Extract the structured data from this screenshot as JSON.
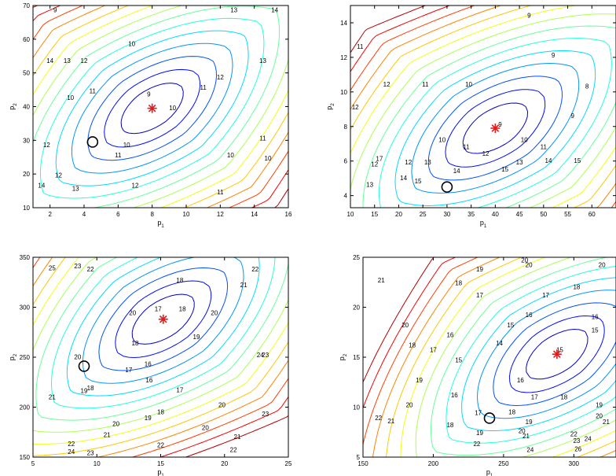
{
  "chart_data": [
    {
      "type": "contour",
      "xlabel": "p",
      "xlabel_sub": "1",
      "ylabel": "p",
      "ylabel_sub": "2",
      "xlim": [
        1,
        16
      ],
      "ylim": [
        10,
        70
      ],
      "xticks": [
        2,
        4,
        6,
        8,
        10,
        12,
        14,
        16
      ],
      "yticks": [
        10,
        20,
        30,
        40,
        50,
        60,
        70
      ],
      "optimum_star": [
        8,
        39.5
      ],
      "start_circle": [
        4.5,
        29.5
      ],
      "contour_labels": [
        {
          "t": "9",
          "x": 7.8,
          "y": 43
        },
        {
          "t": "10",
          "x": 6.8,
          "y": 58
        },
        {
          "t": "10",
          "x": 3.2,
          "y": 42
        },
        {
          "t": "10",
          "x": 9.2,
          "y": 39
        },
        {
          "t": "10",
          "x": 6.5,
          "y": 28
        },
        {
          "t": "10",
          "x": 12.6,
          "y": 25
        },
        {
          "t": "10",
          "x": 14.8,
          "y": 24
        },
        {
          "t": "11",
          "x": 11,
          "y": 45
        },
        {
          "t": "11",
          "x": 4.5,
          "y": 44
        },
        {
          "t": "11",
          "x": 14.5,
          "y": 30
        },
        {
          "t": "11",
          "x": 6,
          "y": 25
        },
        {
          "t": "11",
          "x": 12,
          "y": 14
        },
        {
          "t": "12",
          "x": 12,
          "y": 48
        },
        {
          "t": "12",
          "x": 1.8,
          "y": 28
        },
        {
          "t": "12",
          "x": 4,
          "y": 53
        },
        {
          "t": "12",
          "x": 2.5,
          "y": 19
        },
        {
          "t": "12",
          "x": 7,
          "y": 16
        },
        {
          "t": "13",
          "x": 14.5,
          "y": 53
        },
        {
          "t": "13",
          "x": 3,
          "y": 53
        },
        {
          "t": "13",
          "x": 3.5,
          "y": 15
        },
        {
          "t": "13",
          "x": 12.8,
          "y": 68
        },
        {
          "t": "14",
          "x": 2,
          "y": 53
        },
        {
          "t": "14",
          "x": 1.5,
          "y": 16
        },
        {
          "t": "14",
          "x": 15.2,
          "y": 68
        },
        {
          "t": "9",
          "x": 2.3,
          "y": 68
        }
      ]
    },
    {
      "type": "contour",
      "xlabel": "p",
      "xlabel_sub": "1",
      "ylabel": "p",
      "ylabel_sub": "2",
      "xlim": [
        10,
        65
      ],
      "ylim": [
        3.3,
        15
      ],
      "xticks": [
        10,
        15,
        20,
        25,
        30,
        35,
        40,
        45,
        50,
        55,
        60
      ],
      "yticks": [
        4,
        6,
        8,
        10,
        12,
        14
      ],
      "optimum_star": [
        40,
        7.9
      ],
      "start_circle": [
        30,
        4.5
      ],
      "contour_labels": [
        {
          "t": "9",
          "x": 47,
          "y": 14.3
        },
        {
          "t": "9",
          "x": 52,
          "y": 12
        },
        {
          "t": "9",
          "x": 56,
          "y": 8.5
        },
        {
          "t": "9",
          "x": 41,
          "y": 8
        },
        {
          "t": "8",
          "x": 59,
          "y": 10.2
        },
        {
          "t": "10",
          "x": 34.5,
          "y": 10.3
        },
        {
          "t": "10",
          "x": 29,
          "y": 7.1
        },
        {
          "t": "10",
          "x": 46,
          "y": 7.1
        },
        {
          "t": "11",
          "x": 25.5,
          "y": 10.3
        },
        {
          "t": "11",
          "x": 34,
          "y": 6.7
        },
        {
          "t": "11",
          "x": 50,
          "y": 6.7
        },
        {
          "t": "12",
          "x": 17.5,
          "y": 10.3
        },
        {
          "t": "12",
          "x": 38,
          "y": 6.3
        },
        {
          "t": "12",
          "x": 15,
          "y": 5.7
        },
        {
          "t": "12",
          "x": 22,
          "y": 5.8
        },
        {
          "t": "13",
          "x": 26,
          "y": 5.8
        },
        {
          "t": "13",
          "x": 45,
          "y": 5.8
        },
        {
          "t": "13",
          "x": 14,
          "y": 4.5
        },
        {
          "t": "14",
          "x": 32,
          "y": 5.3
        },
        {
          "t": "14",
          "x": 21,
          "y": 4.9
        },
        {
          "t": "14",
          "x": 51,
          "y": 5.9
        },
        {
          "t": "15",
          "x": 42,
          "y": 5.4
        },
        {
          "t": "15",
          "x": 57,
          "y": 5.9
        },
        {
          "t": "15",
          "x": 24,
          "y": 4.7
        },
        {
          "t": "17",
          "x": 16,
          "y": 6
        },
        {
          "t": "11",
          "x": 12,
          "y": 12.5
        },
        {
          "t": "12",
          "x": 11,
          "y": 9
        }
      ]
    },
    {
      "type": "contour",
      "xlabel": "p",
      "xlabel_sub": "1",
      "ylabel": "p",
      "ylabel_sub": "2",
      "xlim": [
        5,
        25
      ],
      "ylim": [
        150,
        350
      ],
      "xticks": [
        5,
        10,
        15,
        20,
        25
      ],
      "yticks": [
        150,
        200,
        250,
        300,
        350
      ],
      "optimum_star": [
        15.2,
        288
      ],
      "start_circle": [
        9,
        241
      ],
      "contour_labels": [
        {
          "t": "16",
          "x": 14,
          "y": 241
        },
        {
          "t": "17",
          "x": 12.5,
          "y": 235
        },
        {
          "t": "17",
          "x": 14.8,
          "y": 296
        },
        {
          "t": "17",
          "x": 16.5,
          "y": 215
        },
        {
          "t": "18",
          "x": 16.5,
          "y": 325
        },
        {
          "t": "18",
          "x": 16.7,
          "y": 296
        },
        {
          "t": "18",
          "x": 13,
          "y": 262
        },
        {
          "t": "18",
          "x": 9.5,
          "y": 217
        },
        {
          "t": "18",
          "x": 15,
          "y": 193
        },
        {
          "t": "19",
          "x": 17.8,
          "y": 268
        },
        {
          "t": "19",
          "x": 9,
          "y": 214
        },
        {
          "t": "19",
          "x": 14,
          "y": 187
        },
        {
          "t": "20",
          "x": 12.8,
          "y": 292
        },
        {
          "t": "20",
          "x": 8.5,
          "y": 248
        },
        {
          "t": "20",
          "x": 19.8,
          "y": 200
        },
        {
          "t": "20",
          "x": 11.5,
          "y": 181
        },
        {
          "t": "20",
          "x": 18.5,
          "y": 177
        },
        {
          "t": "20",
          "x": 19.2,
          "y": 292
        },
        {
          "t": "21",
          "x": 21.5,
          "y": 320
        },
        {
          "t": "21",
          "x": 10.8,
          "y": 170
        },
        {
          "t": "21",
          "x": 21,
          "y": 168
        },
        {
          "t": "21",
          "x": 6.5,
          "y": 208
        },
        {
          "t": "22",
          "x": 22.4,
          "y": 336
        },
        {
          "t": "22",
          "x": 8,
          "y": 161
        },
        {
          "t": "22",
          "x": 15,
          "y": 160
        },
        {
          "t": "22",
          "x": 20.7,
          "y": 155
        },
        {
          "t": "22",
          "x": 9.5,
          "y": 336
        },
        {
          "t": "23",
          "x": 23.2,
          "y": 250
        },
        {
          "t": "23",
          "x": 23.2,
          "y": 191
        },
        {
          "t": "23",
          "x": 8.5,
          "y": 339
        },
        {
          "t": "23",
          "x": 9.5,
          "y": 152
        },
        {
          "t": "24",
          "x": 22.8,
          "y": 250
        },
        {
          "t": "24",
          "x": 8,
          "y": 153
        },
        {
          "t": "25",
          "x": 6.5,
          "y": 337
        },
        {
          "t": "16",
          "x": 14.1,
          "y": 225
        }
      ]
    },
    {
      "type": "contour",
      "xlabel": "p",
      "xlabel_sub": "1",
      "ylabel": "p",
      "ylabel_sub": "2",
      "xlim": [
        150,
        330
      ],
      "ylim": [
        5,
        25
      ],
      "xticks": [
        150,
        200,
        250,
        300
      ],
      "yticks": [
        5,
        10,
        15,
        20,
        25
      ],
      "optimum_star": [
        288,
        15.3
      ],
      "start_circle": [
        240,
        8.9
      ],
      "contour_labels": [
        {
          "t": "14",
          "x": 247,
          "y": 16.2
        },
        {
          "t": "15",
          "x": 255,
          "y": 18
        },
        {
          "t": "15",
          "x": 218,
          "y": 14.5
        },
        {
          "t": "15",
          "x": 290,
          "y": 15.5
        },
        {
          "t": "15",
          "x": 315,
          "y": 17.5
        },
        {
          "t": "16",
          "x": 268,
          "y": 19
        },
        {
          "t": "16",
          "x": 212,
          "y": 17
        },
        {
          "t": "16",
          "x": 262,
          "y": 12.5
        },
        {
          "t": "16",
          "x": 315,
          "y": 18.8
        },
        {
          "t": "16",
          "x": 215,
          "y": 11
        },
        {
          "t": "17",
          "x": 233,
          "y": 21
        },
        {
          "t": "17",
          "x": 280,
          "y": 21
        },
        {
          "t": "17",
          "x": 200,
          "y": 15.5
        },
        {
          "t": "17",
          "x": 232,
          "y": 9.2
        },
        {
          "t": "17",
          "x": 272,
          "y": 10.8
        },
        {
          "t": "18",
          "x": 218,
          "y": 22.2
        },
        {
          "t": "18",
          "x": 302,
          "y": 21.8
        },
        {
          "t": "18",
          "x": 185,
          "y": 16
        },
        {
          "t": "18",
          "x": 256,
          "y": 9.3
        },
        {
          "t": "18",
          "x": 212,
          "y": 8
        },
        {
          "t": "18",
          "x": 293,
          "y": 10.8
        },
        {
          "t": "19",
          "x": 233,
          "y": 23.6
        },
        {
          "t": "19",
          "x": 190,
          "y": 12.5
        },
        {
          "t": "19",
          "x": 268,
          "y": 8.3
        },
        {
          "t": "19",
          "x": 233,
          "y": 7.2
        },
        {
          "t": "19",
          "x": 318,
          "y": 10
        },
        {
          "t": "20",
          "x": 265,
          "y": 24.5
        },
        {
          "t": "20",
          "x": 268,
          "y": 24
        },
        {
          "t": "20",
          "x": 180,
          "y": 18
        },
        {
          "t": "20",
          "x": 183,
          "y": 10
        },
        {
          "t": "20",
          "x": 263,
          "y": 7.4
        },
        {
          "t": "20",
          "x": 318,
          "y": 8.9
        },
        {
          "t": "20",
          "x": 320,
          "y": 24
        },
        {
          "t": "21",
          "x": 163,
          "y": 22.5
        },
        {
          "t": "21",
          "x": 170,
          "y": 8.4
        },
        {
          "t": "21",
          "x": 266,
          "y": 6.9
        },
        {
          "t": "21",
          "x": 323,
          "y": 8.3
        },
        {
          "t": "22",
          "x": 161,
          "y": 8.7
        },
        {
          "t": "22",
          "x": 231,
          "y": 6.1
        },
        {
          "t": "22",
          "x": 300,
          "y": 7.1
        },
        {
          "t": "23",
          "x": 302,
          "y": 6.4
        },
        {
          "t": "24",
          "x": 310,
          "y": 6.6
        },
        {
          "t": "24",
          "x": 269,
          "y": 5.5
        },
        {
          "t": "26",
          "x": 303,
          "y": 5.6
        }
      ]
    }
  ]
}
